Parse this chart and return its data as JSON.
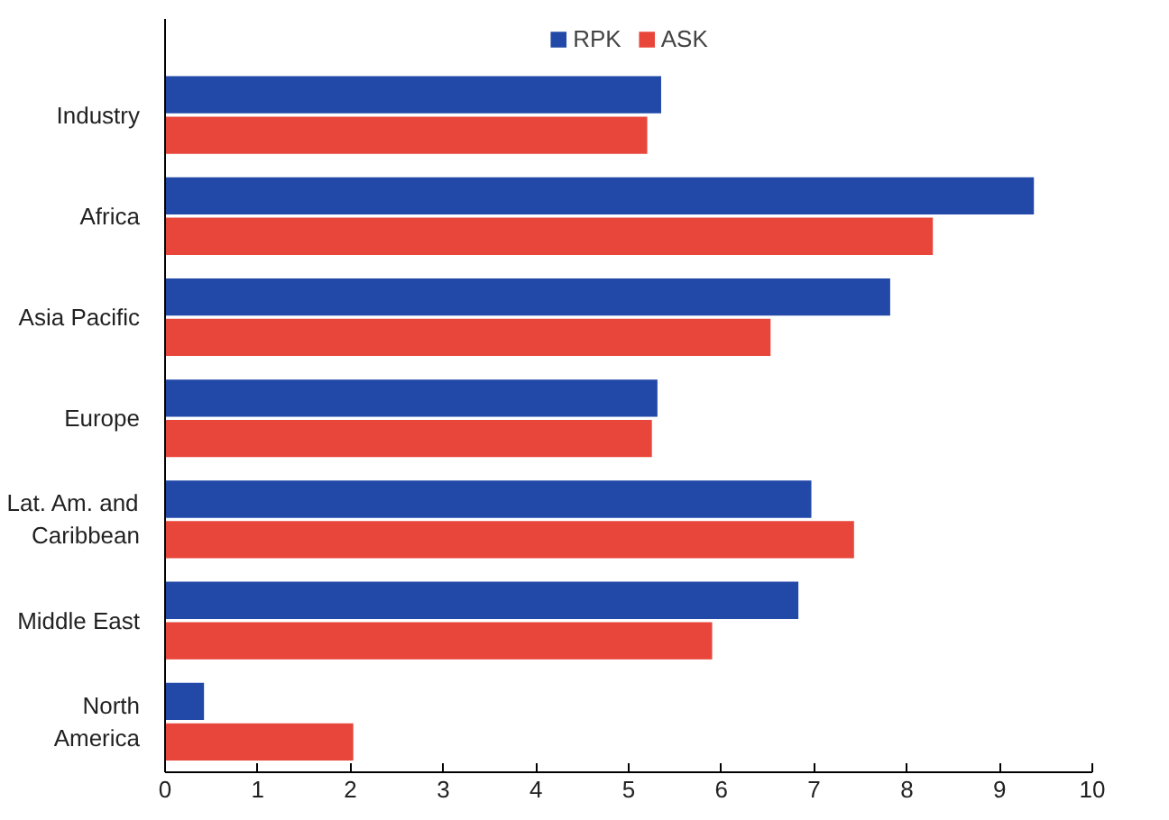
{
  "chart_data": {
    "type": "bar",
    "orientation": "horizontal",
    "categories": [
      "Industry",
      "Africa",
      "Asia Pacific",
      "Europe",
      "Lat. Am. and\nCaribbean",
      "Middle East",
      "North\nAmerica"
    ],
    "series": [
      {
        "name": "RPK",
        "color": "#2349a8",
        "values": [
          5.35,
          9.37,
          7.82,
          5.31,
          6.97,
          6.83,
          0.42
        ]
      },
      {
        "name": "ASK",
        "color": "#e8463a",
        "values": [
          5.2,
          8.28,
          6.53,
          5.25,
          7.43,
          5.9,
          2.03
        ]
      }
    ],
    "xlim": [
      0,
      10
    ],
    "xticks": [
      0,
      1,
      2,
      3,
      4,
      5,
      6,
      7,
      8,
      9,
      10
    ],
    "grid": false,
    "legend": "top"
  }
}
